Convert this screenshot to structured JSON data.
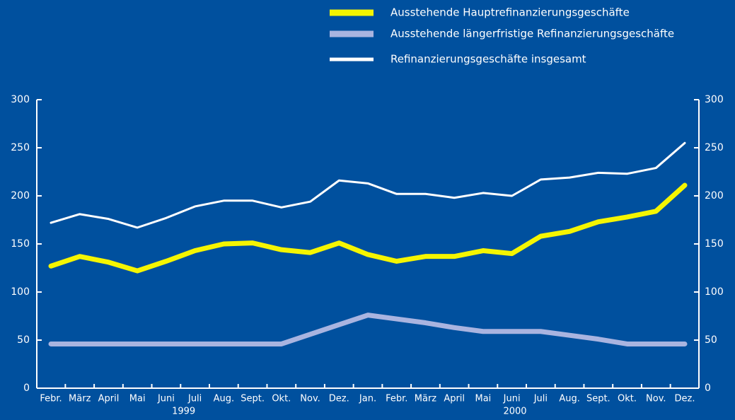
{
  "chart_data": {
    "type": "line",
    "categories": [
      "Febr.",
      "März",
      "April",
      "Mai",
      "Juni",
      "Juli",
      "Aug.",
      "Sept.",
      "Okt.",
      "Nov.",
      "Dez.",
      "Jan.",
      "Febr.",
      "März",
      "April",
      "Mai",
      "Juni",
      "Juli",
      "Aug.",
      "Sept.",
      "Okt.",
      "Nov.",
      "Dez."
    ],
    "year_labels": [
      "1999",
      "2000"
    ],
    "series": [
      {
        "name": "Ausstehende Hauptrefinanzierungsgeschäfte",
        "color": "#f5f500",
        "values": [
          127,
          137,
          131,
          122,
          132,
          143,
          150,
          151,
          144,
          141,
          151,
          139,
          132,
          137,
          137,
          143,
          140,
          158,
          163,
          173,
          178,
          184,
          211
        ]
      },
      {
        "name": "Ausstehende längerfristige Refinanzierungsgeschäfte",
        "color": "#a9b4e0",
        "values": [
          46,
          46,
          46,
          46,
          46,
          46,
          46,
          46,
          46,
          56,
          66,
          76,
          72,
          68,
          63,
          59,
          59,
          59,
          55,
          51,
          46,
          46,
          46
        ]
      },
      {
        "name": "Refinanzierungsgeschäfte insgesamt",
        "color": "#ffffff",
        "values": [
          172,
          181,
          176,
          167,
          177,
          189,
          195,
          195,
          188,
          194,
          216,
          213,
          202,
          202,
          198,
          203,
          200,
          217,
          219,
          224,
          223,
          229,
          255
        ]
      }
    ],
    "ylim": [
      0,
      300
    ],
    "yticks": [
      0,
      50,
      100,
      150,
      200,
      250,
      300
    ],
    "y2lim": [
      0,
      300
    ],
    "y2ticks": [
      0,
      50,
      100,
      150,
      200,
      250,
      300
    ]
  }
}
